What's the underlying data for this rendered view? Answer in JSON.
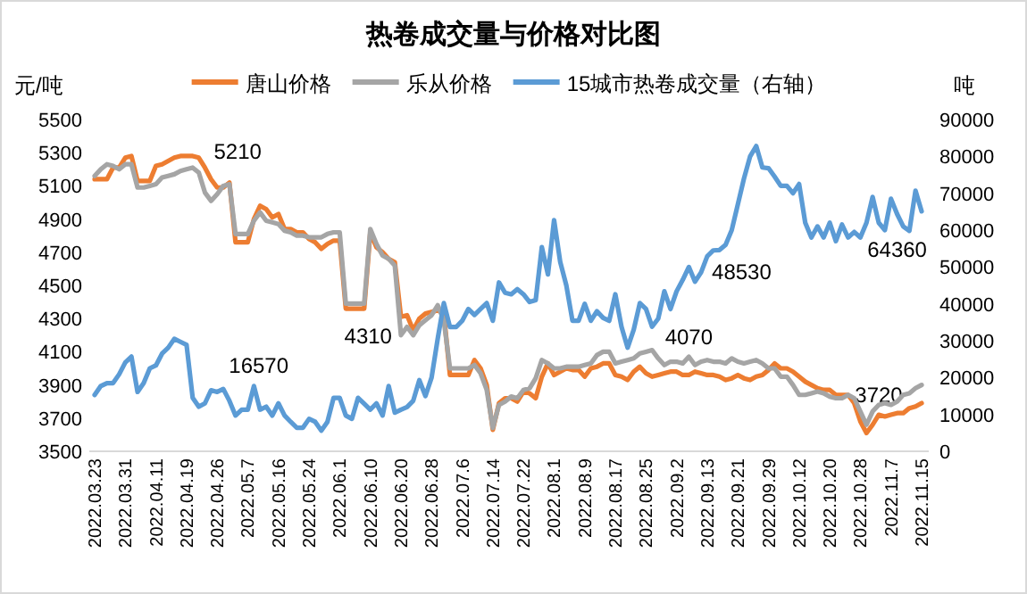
{
  "chart_data": {
    "type": "line",
    "title": "热卷成交量与价格对比图",
    "ylabel": "元/吨",
    "y2label": "吨",
    "legend": "top",
    "ylim": [
      3500,
      5500
    ],
    "yticks": [
      3500,
      3700,
      3900,
      4100,
      4300,
      4500,
      4700,
      4900,
      5100,
      5300,
      5500
    ],
    "y2lim": [
      0,
      90000
    ],
    "y2ticks": [
      0,
      10000,
      20000,
      30000,
      40000,
      50000,
      60000,
      70000,
      80000,
      90000
    ],
    "categories": [
      "2022.03.23",
      null,
      null,
      null,
      null,
      "2022.03.31",
      null,
      null,
      null,
      null,
      "2022.04.11",
      null,
      null,
      null,
      null,
      "2022.04.19",
      null,
      null,
      null,
      null,
      "2022.04.26",
      null,
      null,
      null,
      null,
      "2022.05.7",
      null,
      null,
      null,
      null,
      "2022.05.16",
      null,
      null,
      null,
      null,
      "2022.05.24",
      null,
      null,
      null,
      null,
      "2022.06.1",
      null,
      null,
      null,
      null,
      "2022.06.10",
      null,
      null,
      null,
      null,
      "2022.06.20",
      null,
      null,
      null,
      null,
      "2022.06.28",
      null,
      null,
      null,
      null,
      "2022.07.6",
      null,
      null,
      null,
      null,
      "2022.07.14",
      null,
      null,
      null,
      null,
      "2022.07.22",
      null,
      null,
      null,
      null,
      "2022.08.1",
      null,
      null,
      null,
      null,
      "2022.08.9",
      null,
      null,
      null,
      null,
      "2022.08.17",
      null,
      null,
      null,
      null,
      "2022.08.25",
      null,
      null,
      null,
      null,
      "2022.09.2",
      null,
      null,
      null,
      null,
      "2022.09.13",
      null,
      null,
      null,
      null,
      "2022.09.21",
      null,
      null,
      null,
      null,
      "2022.09.29",
      null,
      null,
      null,
      null,
      "2022.10.12",
      null,
      null,
      null,
      null,
      "2022.10.20",
      null,
      null,
      null,
      null,
      "2022.10.28",
      null,
      null,
      null,
      null,
      "2022.11.7",
      null,
      null,
      null,
      null,
      "2022.11.15"
    ],
    "series": [
      {
        "name": "唐山价格",
        "color": "#ed7d31",
        "values": [
          5140,
          5140,
          5140,
          5210,
          5210,
          5270,
          5280,
          5130,
          5130,
          5130,
          5220,
          5230,
          5250,
          5270,
          5280,
          5280,
          5280,
          5270,
          5210,
          5140,
          5090,
          5090,
          5120,
          4760,
          4760,
          4760,
          4900,
          4980,
          4960,
          4910,
          4930,
          4840,
          4840,
          4820,
          4820,
          4780,
          4760,
          4720,
          4750,
          4770,
          4770,
          4360,
          4360,
          4360,
          4360,
          4820,
          4730,
          4700,
          4660,
          4640,
          4310,
          4320,
          4230,
          4300,
          4330,
          4340,
          4350,
          4330,
          3960,
          3960,
          3960,
          3960,
          4050,
          4000,
          3900,
          3630,
          3790,
          3820,
          3820,
          3800,
          3860,
          3850,
          3820,
          3950,
          4030,
          3960,
          3980,
          4000,
          3990,
          3990,
          3950,
          4000,
          4010,
          4030,
          4030,
          3960,
          3950,
          3930,
          3980,
          4010,
          3970,
          3950,
          3960,
          3970,
          3980,
          3980,
          3960,
          3960,
          3980,
          3970,
          3960,
          3960,
          3950,
          3930,
          3940,
          3960,
          3940,
          3930,
          3950,
          3960,
          3990,
          4030,
          4000,
          4000,
          3980,
          3950,
          3920,
          3900,
          3880,
          3870,
          3870,
          3840,
          3840,
          3840,
          3790,
          3680,
          3610,
          3660,
          3720,
          3710,
          3720,
          3730,
          3730,
          3760,
          3770,
          3790
        ],
        "value_labels": [
          null,
          null,
          null,
          null,
          null,
          null,
          null,
          null,
          null,
          null,
          null,
          null,
          null,
          null,
          null,
          null,
          null,
          null,
          "5210",
          null,
          null,
          null,
          null,
          null,
          null,
          null,
          null,
          null,
          null,
          null,
          null,
          null,
          null,
          null,
          null,
          null,
          null,
          null,
          null,
          null,
          null,
          null,
          null,
          null,
          null,
          null,
          null,
          null,
          null,
          null,
          "4310",
          null,
          null,
          null,
          null,
          null,
          null,
          null,
          null,
          null,
          null,
          null,
          null,
          null,
          null,
          null,
          null,
          null,
          null,
          null,
          null,
          null,
          null,
          null,
          null,
          null,
          null,
          null,
          null,
          null,
          null,
          null,
          null,
          null,
          null,
          null,
          null,
          null,
          null,
          null,
          null,
          null,
          null,
          null,
          null,
          null,
          null,
          null,
          null,
          null,
          null,
          null,
          null,
          null,
          null,
          null,
          null,
          null,
          null,
          null,
          null,
          null,
          null,
          null,
          null,
          null,
          null,
          null,
          null,
          null,
          null,
          null,
          null,
          null,
          null,
          null,
          null,
          null,
          "3720",
          null,
          null,
          null,
          null,
          null,
          null,
          null
        ]
      },
      {
        "name": "乐从价格",
        "color": "#a5a5a5",
        "values": [
          5160,
          5200,
          5230,
          5220,
          5200,
          5230,
          5230,
          5090,
          5090,
          5100,
          5110,
          5150,
          5160,
          5170,
          5190,
          5200,
          5210,
          5180,
          5060,
          5010,
          5050,
          5100,
          5110,
          4810,
          4810,
          4810,
          4890,
          4940,
          4890,
          4880,
          4870,
          4830,
          4820,
          4800,
          4800,
          4790,
          4790,
          4790,
          4810,
          4820,
          4820,
          4390,
          4390,
          4390,
          4390,
          4840,
          4750,
          4680,
          4660,
          4620,
          4200,
          4250,
          4200,
          4260,
          4290,
          4320,
          4380,
          4290,
          4000,
          4000,
          4000,
          4000,
          4020,
          3970,
          3870,
          3640,
          3780,
          3800,
          3830,
          3820,
          3870,
          3880,
          3940,
          4050,
          4030,
          4000,
          4000,
          4010,
          4010,
          4010,
          4020,
          4030,
          4080,
          4100,
          4100,
          4030,
          4040,
          4050,
          4060,
          4090,
          4100,
          4110,
          4060,
          4020,
          4040,
          4040,
          4030,
          4070,
          4020,
          4040,
          4050,
          4040,
          4040,
          4030,
          4060,
          4040,
          4030,
          4040,
          4050,
          4030,
          4000,
          4000,
          3950,
          3950,
          3900,
          3840,
          3840,
          3850,
          3860,
          3850,
          3830,
          3820,
          3820,
          3840,
          3820,
          3740,
          3660,
          3740,
          3780,
          3790,
          3780,
          3800,
          3840,
          3850,
          3880,
          3900
        ],
        "value_labels": [
          null,
          null,
          null,
          null,
          null,
          null,
          null,
          null,
          null,
          null,
          null,
          null,
          null,
          null,
          null,
          null,
          null,
          null,
          null,
          null,
          null,
          null,
          null,
          null,
          null,
          null,
          null,
          null,
          null,
          null,
          null,
          null,
          null,
          null,
          null,
          null,
          null,
          null,
          null,
          null,
          null,
          null,
          null,
          null,
          null,
          null,
          null,
          null,
          null,
          null,
          null,
          null,
          null,
          null,
          null,
          null,
          null,
          null,
          null,
          null,
          null,
          null,
          null,
          null,
          null,
          null,
          null,
          null,
          null,
          null,
          null,
          null,
          null,
          null,
          null,
          null,
          null,
          null,
          null,
          null,
          null,
          null,
          null,
          null,
          null,
          null,
          null,
          null,
          null,
          null,
          null,
          null,
          null,
          null,
          null,
          null,
          null,
          "4070",
          null,
          null,
          null,
          null,
          null,
          null,
          null,
          null,
          null,
          null,
          null,
          null,
          null,
          null,
          null,
          null,
          null,
          null,
          null,
          null,
          null,
          null,
          null,
          null,
          null,
          null,
          null,
          null,
          null,
          null,
          null,
          null,
          null,
          null,
          null,
          null,
          null,
          null
        ]
      },
      {
        "name": "15城市热卷成交量（右轴）",
        "color": "#5b9bd5",
        "axis": "y2",
        "values": [
          15300,
          17700,
          18500,
          18500,
          20900,
          24100,
          25700,
          16100,
          18500,
          22500,
          23300,
          26500,
          28100,
          30500,
          29700,
          28900,
          14500,
          12100,
          13000,
          16570,
          16100,
          16900,
          13700,
          9700,
          11300,
          11300,
          17700,
          11300,
          12100,
          9700,
          13000,
          9700,
          8000,
          6400,
          6400,
          8800,
          8000,
          5600,
          8000,
          14500,
          14500,
          9700,
          8800,
          14500,
          12900,
          11300,
          13000,
          9700,
          17700,
          10500,
          11300,
          12000,
          13700,
          19300,
          15000,
          20000,
          30500,
          40200,
          33700,
          33700,
          35400,
          38600,
          37000,
          38600,
          40200,
          35400,
          45800,
          43000,
          42600,
          44000,
          42600,
          40500,
          41000,
          55400,
          48000,
          62700,
          51400,
          45000,
          35400,
          35400,
          40000,
          35400,
          38000,
          36200,
          35400,
          42600,
          33800,
          28100,
          33000,
          40200,
          38600,
          33800,
          36000,
          43400,
          38600,
          43400,
          46500,
          50000,
          46000,
          48530,
          52900,
          54500,
          54600,
          56000,
          60000,
          67000,
          74000,
          80000,
          82800,
          77000,
          76800,
          74500,
          72000,
          72000,
          70000,
          72500,
          62000,
          58000,
          61000,
          58000,
          62000,
          57000,
          61500,
          58000,
          59500,
          58000,
          62000,
          69000,
          62000,
          60000,
          68500,
          64360,
          61000,
          59800,
          70700,
          65100
        ],
        "value_labels": [
          null,
          null,
          null,
          null,
          null,
          null,
          null,
          null,
          null,
          null,
          null,
          null,
          null,
          null,
          null,
          null,
          null,
          null,
          null,
          "16570",
          null,
          null,
          null,
          null,
          null,
          null,
          null,
          null,
          null,
          null,
          null,
          null,
          null,
          null,
          null,
          null,
          null,
          null,
          null,
          null,
          null,
          null,
          null,
          null,
          null,
          null,
          null,
          null,
          null,
          null,
          null,
          null,
          null,
          null,
          null,
          null,
          null,
          null,
          null,
          null,
          null,
          null,
          null,
          null,
          null,
          null,
          null,
          null,
          null,
          null,
          null,
          null,
          null,
          null,
          null,
          null,
          null,
          null,
          null,
          null,
          null,
          null,
          null,
          null,
          null,
          null,
          null,
          null,
          null,
          null,
          null,
          null,
          null,
          null,
          null,
          null,
          null,
          null,
          null,
          "48530",
          null,
          null,
          null,
          null,
          null,
          null,
          null,
          null,
          null,
          null,
          null,
          null,
          null,
          null,
          null,
          null,
          null,
          null,
          null,
          null,
          null,
          null,
          null,
          null,
          null,
          null,
          null,
          null,
          null,
          null,
          null,
          "64360",
          null,
          null,
          null,
          null
        ]
      }
    ]
  }
}
